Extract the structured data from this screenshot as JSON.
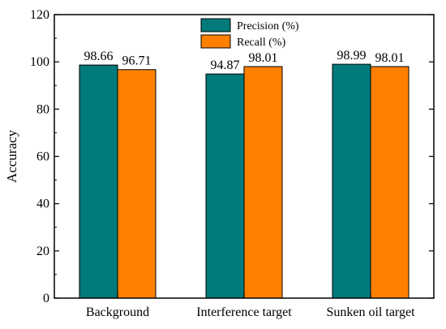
{
  "chart_data": {
    "type": "bar",
    "title": "",
    "xlabel": "",
    "ylabel": "Accuracy",
    "ylim": [
      0,
      120
    ],
    "yticks": [
      0,
      20,
      40,
      60,
      80,
      100,
      120
    ],
    "categories": [
      "Background",
      "Interference target",
      "Sunken oil target"
    ],
    "series": [
      {
        "name": "Precision (%)",
        "color": "#007a7a",
        "values": [
          98.66,
          94.87,
          98.99
        ],
        "labels": [
          "98.66",
          "94.87",
          "98.99"
        ]
      },
      {
        "name": "Recall (%)",
        "color": "#ff8000",
        "values": [
          96.71,
          98.01,
          98.01
        ],
        "labels": [
          "96.71",
          "98.01",
          "98.01"
        ]
      }
    ],
    "grid": false,
    "legend_position": "top-center"
  }
}
